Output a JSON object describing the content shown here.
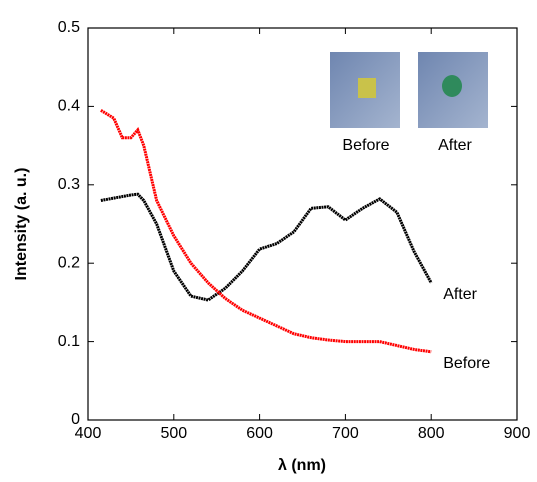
{
  "chart_data": {
    "type": "line",
    "x_label": "λ (nm)",
    "y_label": "Intensity (a. u.)",
    "x": [
      415,
      430,
      440,
      450,
      458,
      465,
      480,
      500,
      520,
      540,
      560,
      580,
      600,
      620,
      640,
      660,
      680,
      700,
      720,
      740,
      760,
      780,
      800
    ],
    "series": [
      {
        "name": "After",
        "color": "#000000",
        "values": [
          0.28,
          0.283,
          0.285,
          0.287,
          0.288,
          0.28,
          0.25,
          0.19,
          0.158,
          0.153,
          0.168,
          0.19,
          0.218,
          0.225,
          0.24,
          0.27,
          0.272,
          0.255,
          0.27,
          0.282,
          0.265,
          0.215,
          0.175
        ]
      },
      {
        "name": "Before",
        "color": "#ff0000",
        "values": [
          0.395,
          0.385,
          0.36,
          0.36,
          0.37,
          0.35,
          0.28,
          0.235,
          0.2,
          0.175,
          0.155,
          0.14,
          0.13,
          0.12,
          0.11,
          0.105,
          0.102,
          0.1,
          0.1,
          0.1,
          0.095,
          0.09,
          0.087
        ]
      }
    ],
    "inset_labels": [
      "Before",
      "After"
    ],
    "xlim": [
      400,
      900
    ],
    "xticks": [
      400,
      500,
      600,
      700,
      800,
      900
    ],
    "ylim": [
      0,
      0.5
    ],
    "yticks": [
      0,
      0.1,
      0.2,
      0.3,
      0.4,
      0.5
    ]
  }
}
